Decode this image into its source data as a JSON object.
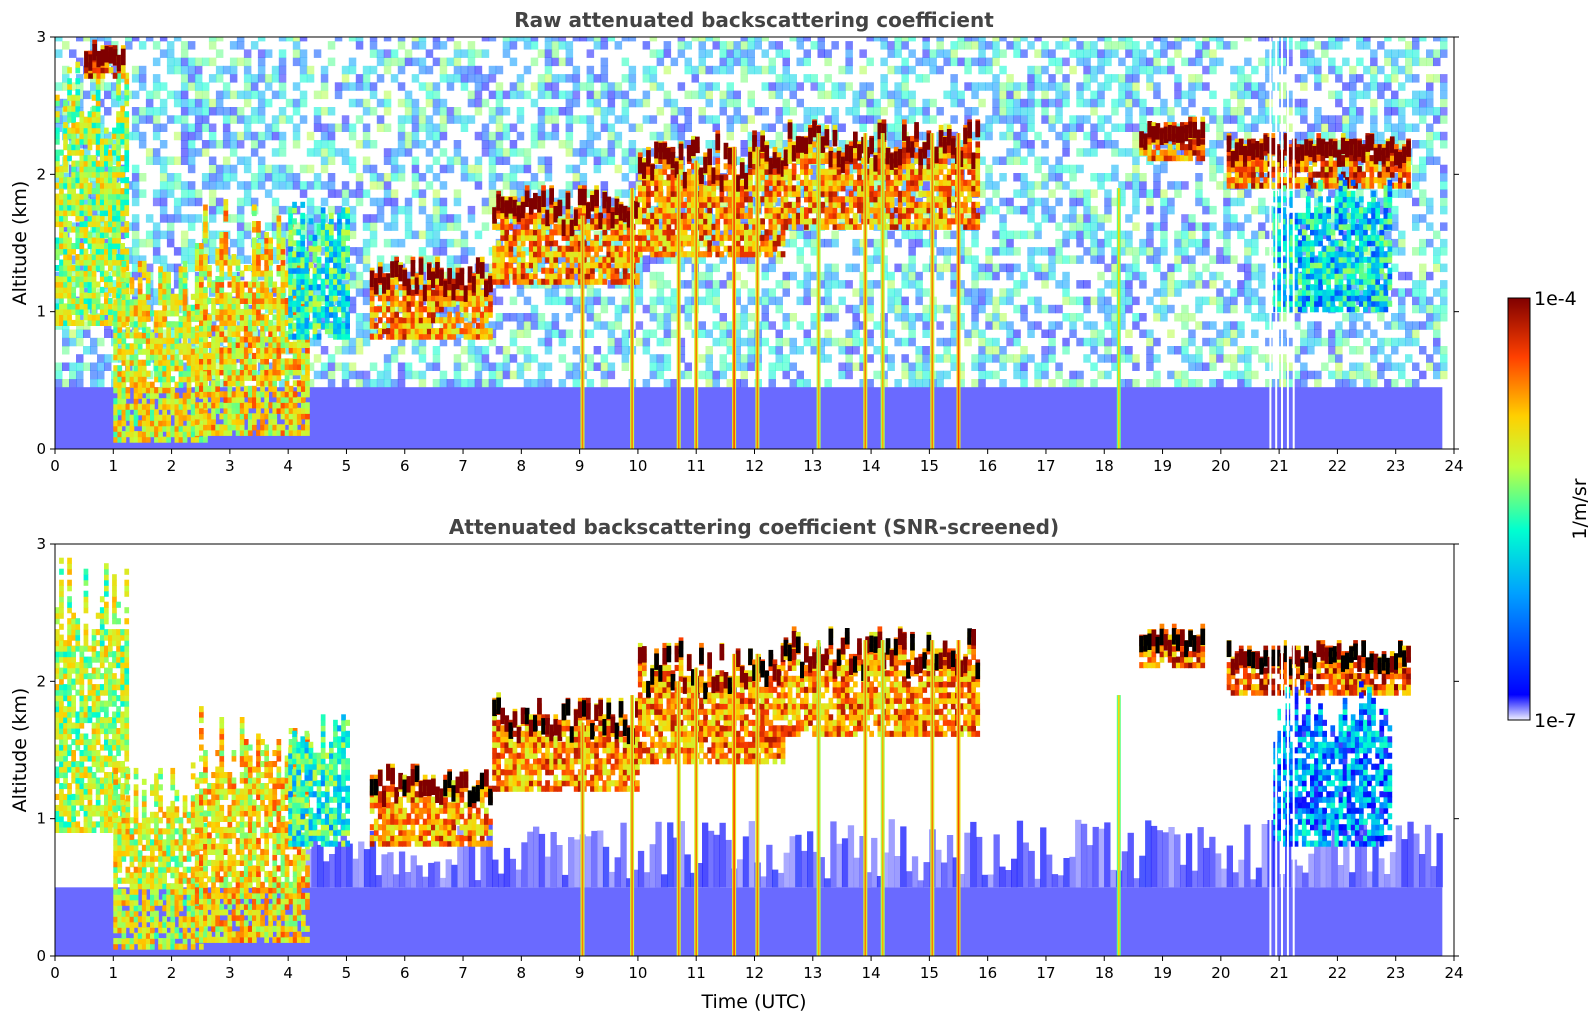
{
  "chart_data": [
    {
      "type": "heatmap",
      "title": "Raw attenuated backscattering coefficient",
      "xlabel": "",
      "ylabel": "Altitude (km)",
      "xlim": [
        0,
        24
      ],
      "ylim": [
        0,
        3
      ],
      "xticks": [
        "0",
        "1",
        "2",
        "3",
        "4",
        "5",
        "6",
        "7",
        "8",
        "9",
        "10",
        "11",
        "12",
        "13",
        "14",
        "15",
        "16",
        "17",
        "18",
        "19",
        "20",
        "21",
        "22",
        "23",
        "24"
      ],
      "yticks": [
        "0",
        "1",
        "2",
        "3"
      ],
      "screened": false,
      "data_end_time": 23.8,
      "surface_layer_top_km": 0.45,
      "gap_times": [
        20.85,
        20.95,
        21.05,
        21.15,
        21.25
      ],
      "features": [
        {
          "time": [
            0.0,
            1.2
          ],
          "alt": [
            0.9,
            2.9
          ],
          "level": 0.75
        },
        {
          "time": [
            0.5,
            1.2
          ],
          "alt": [
            2.7,
            2.95
          ],
          "level": 1.0
        },
        {
          "time": [
            1.0,
            2.6
          ],
          "alt": [
            0.05,
            1.4
          ],
          "level": 0.8
        },
        {
          "time": [
            2.4,
            4.3
          ],
          "alt": [
            0.1,
            1.8
          ],
          "level": 0.85
        },
        {
          "time": [
            4.0,
            5.0
          ],
          "alt": [
            0.8,
            1.8
          ],
          "level": 0.6
        },
        {
          "time": [
            5.4,
            7.5
          ],
          "alt": [
            0.8,
            1.4
          ],
          "level": 0.95
        },
        {
          "time": [
            7.5,
            10.0
          ],
          "alt": [
            1.2,
            1.9
          ],
          "level": 0.95
        },
        {
          "time": [
            10.0,
            12.5
          ],
          "alt": [
            1.4,
            2.3
          ],
          "level": 0.95
        },
        {
          "time": [
            12.5,
            15.8
          ],
          "alt": [
            1.6,
            2.4
          ],
          "level": 0.95
        },
        {
          "time": [
            18.6,
            19.7
          ],
          "alt": [
            2.1,
            2.4
          ],
          "level": 1.0
        },
        {
          "time": [
            20.1,
            23.2
          ],
          "alt": [
            1.9,
            2.3
          ],
          "level": 1.0
        },
        {
          "time": [
            20.9,
            22.9
          ],
          "alt": [
            1.0,
            2.0
          ],
          "level": 0.55
        }
      ],
      "fallstreaks": [
        {
          "time": 9.05,
          "alt_top": 1.7,
          "level": 0.6
        },
        {
          "time": 9.9,
          "alt_top": 1.9,
          "level": 0.6
        },
        {
          "time": 10.7,
          "alt_top": 2.0,
          "level": 0.6
        },
        {
          "time": 11.0,
          "alt_top": 2.1,
          "level": 0.6
        },
        {
          "time": 11.65,
          "alt_top": 2.2,
          "level": 0.65
        },
        {
          "time": 12.05,
          "alt_top": 2.2,
          "level": 0.6
        },
        {
          "time": 13.1,
          "alt_top": 2.3,
          "level": 0.55
        },
        {
          "time": 13.9,
          "alt_top": 2.3,
          "level": 0.6
        },
        {
          "time": 14.2,
          "alt_top": 2.3,
          "level": 0.55
        },
        {
          "time": 15.05,
          "alt_top": 2.3,
          "level": 0.6
        },
        {
          "time": 15.5,
          "alt_top": 2.3,
          "level": 0.65
        },
        {
          "time": 18.25,
          "alt_top": 1.9,
          "level": 0.5
        }
      ]
    },
    {
      "type": "heatmap",
      "title": "Attenuated backscattering coefficient (SNR-screened)",
      "xlabel": "Time (UTC)",
      "ylabel": "Altitude (km)",
      "xlim": [
        0,
        24
      ],
      "ylim": [
        0,
        3
      ],
      "xticks": [
        "0",
        "1",
        "2",
        "3",
        "4",
        "5",
        "6",
        "7",
        "8",
        "9",
        "10",
        "11",
        "12",
        "13",
        "14",
        "15",
        "16",
        "17",
        "18",
        "19",
        "20",
        "21",
        "22",
        "23",
        "24"
      ],
      "yticks": [
        "0",
        "1",
        "2",
        "3"
      ],
      "screened": true,
      "data_end_time": 23.8,
      "surface_layer_top_km": 0.5,
      "gap_times": [
        20.85,
        20.95,
        21.05,
        21.15,
        21.25
      ],
      "features": [
        {
          "time": [
            0.0,
            1.2
          ],
          "alt": [
            0.9,
            2.9
          ],
          "level": 0.75
        },
        {
          "time": [
            1.0,
            2.6
          ],
          "alt": [
            0.05,
            1.4
          ],
          "level": 0.8
        },
        {
          "time": [
            2.4,
            4.3
          ],
          "alt": [
            0.1,
            1.8
          ],
          "level": 0.85
        },
        {
          "time": [
            4.0,
            5.0
          ],
          "alt": [
            0.8,
            1.8
          ],
          "level": 0.6
        },
        {
          "time": [
            5.4,
            7.5
          ],
          "alt": [
            0.8,
            1.4
          ],
          "level": 0.95
        },
        {
          "time": [
            7.5,
            10.0
          ],
          "alt": [
            1.2,
            1.9
          ],
          "level": 0.95
        },
        {
          "time": [
            10.0,
            12.5
          ],
          "alt": [
            1.4,
            2.3
          ],
          "level": 0.95
        },
        {
          "time": [
            12.5,
            15.8
          ],
          "alt": [
            1.6,
            2.4
          ],
          "level": 0.95
        },
        {
          "time": [
            18.6,
            19.7
          ],
          "alt": [
            2.1,
            2.4
          ],
          "level": 1.0
        },
        {
          "time": [
            20.1,
            23.2
          ],
          "alt": [
            1.9,
            2.3
          ],
          "level": 1.0
        },
        {
          "time": [
            20.9,
            22.9
          ],
          "alt": [
            0.8,
            2.0
          ],
          "level": 0.45
        }
      ],
      "fallstreaks": [
        {
          "time": 9.05,
          "alt_top": 1.7,
          "level": 0.6
        },
        {
          "time": 9.9,
          "alt_top": 1.9,
          "level": 0.6
        },
        {
          "time": 10.7,
          "alt_top": 2.0,
          "level": 0.6
        },
        {
          "time": 11.0,
          "alt_top": 2.1,
          "level": 0.6
        },
        {
          "time": 11.65,
          "alt_top": 2.2,
          "level": 0.65
        },
        {
          "time": 12.05,
          "alt_top": 2.2,
          "level": 0.6
        },
        {
          "time": 13.1,
          "alt_top": 2.3,
          "level": 0.55
        },
        {
          "time": 13.9,
          "alt_top": 2.3,
          "level": 0.6
        },
        {
          "time": 14.2,
          "alt_top": 2.3,
          "level": 0.55
        },
        {
          "time": 15.05,
          "alt_top": 2.3,
          "level": 0.6
        },
        {
          "time": 15.5,
          "alt_top": 2.3,
          "level": 0.65
        },
        {
          "time": 18.25,
          "alt_top": 1.9,
          "level": 0.5
        }
      ]
    }
  ],
  "colorbar": {
    "label": "1/m/sr",
    "max_label": "1e-4",
    "min_label": "1e-7",
    "colormap": "jet",
    "colors": [
      "#f0f0ff",
      "#0000ff",
      "#00a0ff",
      "#00ffd0",
      "#c0ff40",
      "#ffd000",
      "#ff4000",
      "#800000"
    ]
  }
}
